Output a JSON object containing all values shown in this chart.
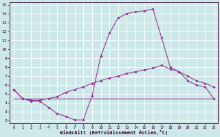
{
  "background_color": "#cce8e8",
  "grid_color": "#ffffff",
  "line_color": "#993399",
  "xlabel": "Windchill (Refroidissement éolien,°C)",
  "xlim": [
    -0.5,
    23.5
  ],
  "ylim": [
    1.7,
    15.3
  ],
  "yticks": [
    2,
    3,
    4,
    5,
    6,
    7,
    8,
    9,
    10,
    11,
    12,
    13,
    14,
    15
  ],
  "xticks": [
    0,
    1,
    2,
    3,
    4,
    5,
    6,
    7,
    8,
    9,
    10,
    11,
    12,
    13,
    14,
    15,
    16,
    17,
    18,
    19,
    20,
    21,
    22,
    23
  ],
  "line1_x": [
    0,
    1,
    2,
    3,
    4,
    5,
    6,
    7,
    8,
    9,
    10,
    11,
    12,
    13,
    14,
    15,
    16,
    17,
    18,
    19,
    20,
    21,
    22,
    23
  ],
  "line1_y": [
    5.5,
    4.5,
    4.2,
    4.2,
    3.5,
    2.8,
    2.5,
    2.1,
    2.1,
    4.8,
    9.2,
    11.8,
    13.5,
    14.0,
    14.2,
    14.3,
    14.5,
    11.3,
    8.0,
    7.5,
    6.5,
    6.0,
    5.8,
    4.5
  ],
  "line2_x": [
    0,
    1,
    2,
    3,
    4,
    5,
    6,
    7,
    8,
    9,
    10,
    11,
    12,
    13,
    14,
    15,
    16,
    17,
    18,
    19,
    20,
    21,
    22,
    23
  ],
  "line2_y": [
    5.5,
    4.5,
    4.3,
    4.3,
    4.5,
    4.7,
    5.2,
    5.5,
    5.8,
    6.2,
    6.5,
    6.8,
    7.0,
    7.3,
    7.5,
    7.7,
    7.9,
    8.2,
    7.8,
    7.5,
    7.0,
    6.5,
    6.2,
    5.8
  ],
  "line3_x": [
    0,
    23
  ],
  "line3_y": [
    4.5,
    4.5
  ]
}
